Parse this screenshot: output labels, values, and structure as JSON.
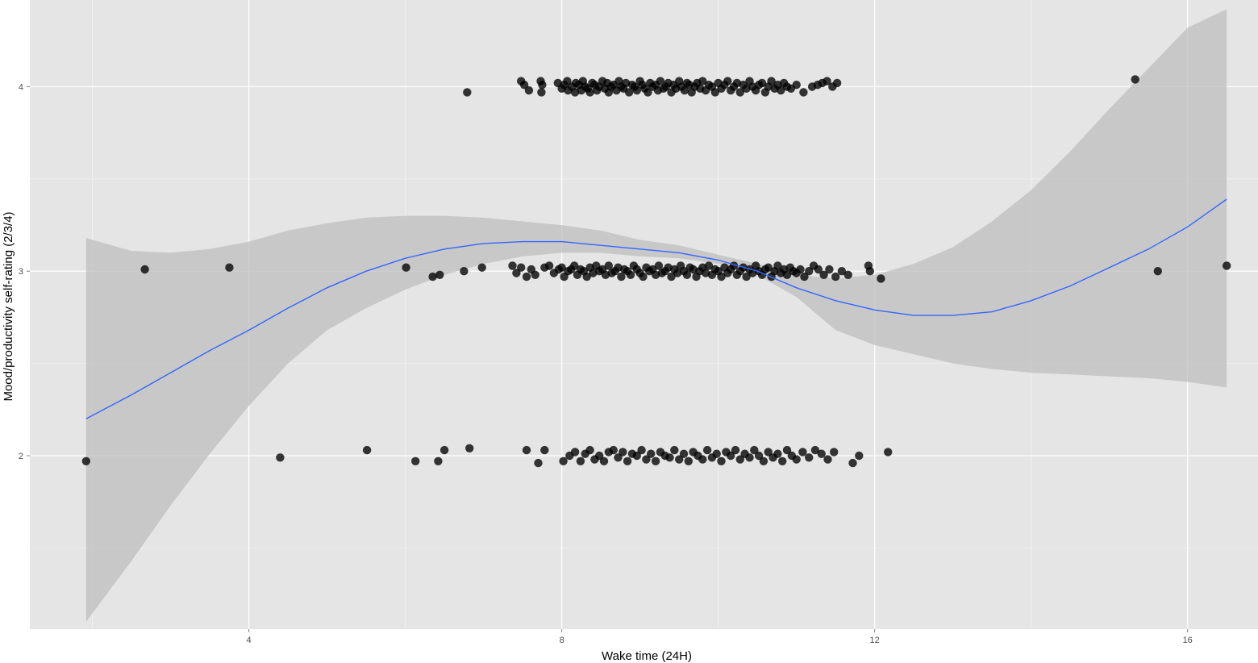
{
  "chart_data": {
    "type": "scatter",
    "title": "",
    "xlabel": "Wake time (24H)",
    "ylabel": "Mood/productivity self-rating (2/3/4)",
    "xlim": [
      1.2,
      16.9
    ],
    "ylim": [
      1.06,
      4.47
    ],
    "x_ticks": [
      4,
      8,
      12,
      16
    ],
    "x_tick_labels": [
      "4",
      "8",
      "12",
      "16"
    ],
    "y_ticks": [
      2,
      3,
      4
    ],
    "y_tick_labels": [
      "2",
      "3",
      "4"
    ],
    "grid": true,
    "legend": "none",
    "colors": {
      "panel_background": "#e5e5e5",
      "grid_major": "#ffffff",
      "grid_minor": "#f2f2f2",
      "points": "#000000",
      "smooth_line": "#3366ff",
      "confidence_band": "#bdbdbd"
    },
    "series": [
      {
        "kind": "points",
        "groups": [
          {
            "y": 4,
            "x": [
              6.79,
              7.48,
              7.52,
              7.58,
              7.73,
              7.74,
              7.75,
              7.95,
              8.0,
              8.03,
              8.07,
              8.08,
              8.13,
              8.17,
              8.18,
              8.22,
              8.25,
              8.27,
              8.3,
              8.33,
              8.36,
              8.39,
              8.42,
              8.45,
              8.48,
              8.52,
              8.55,
              8.58,
              8.6,
              8.63,
              8.66,
              8.7,
              8.73,
              8.76,
              8.79,
              8.82,
              8.86,
              8.9,
              8.93,
              8.96,
              9.0,
              9.03,
              9.06,
              9.1,
              9.13,
              9.16,
              9.2,
              9.23,
              9.26,
              9.3,
              9.33,
              9.36,
              9.4,
              9.43,
              9.46,
              9.5,
              9.53,
              9.57,
              9.6,
              9.63,
              9.66,
              9.7,
              9.73,
              9.77,
              9.8,
              9.84,
              9.88,
              9.92,
              9.96,
              10.0,
              10.04,
              10.08,
              10.12,
              10.16,
              10.2,
              10.24,
              10.28,
              10.32,
              10.36,
              10.4,
              10.44,
              10.48,
              10.52,
              10.56,
              10.6,
              10.64,
              10.68,
              10.72,
              10.76,
              10.8,
              10.84,
              10.88,
              10.93,
              11.0,
              11.09,
              11.2,
              11.27,
              11.33,
              11.39,
              11.46,
              11.52,
              15.33
            ],
            "y_jitter": [
              -0.03,
              0.03,
              0.01,
              -0.02,
              0.03,
              -0.03,
              0.01,
              0.02,
              -0.01,
              0.01,
              0.03,
              -0.02,
              0.0,
              -0.03,
              0.02,
              0.01,
              -0.02,
              0.03,
              0.0,
              -0.01,
              -0.03,
              0.02,
              0.01,
              -0.02,
              0.0,
              0.03,
              -0.01,
              0.02,
              -0.03,
              0.0,
              0.01,
              -0.02,
              0.03,
              0.0,
              -0.01,
              0.02,
              -0.03,
              0.01,
              0.0,
              -0.02,
              0.03,
              0.01,
              -0.01,
              -0.03,
              0.02,
              0.0,
              0.01,
              -0.02,
              0.03,
              -0.01,
              0.0,
              0.02,
              -0.03,
              0.01,
              -0.01,
              0.03,
              0.0,
              -0.02,
              0.02,
              0.01,
              -0.03,
              0.0,
              0.02,
              -0.01,
              0.03,
              -0.02,
              0.01,
              0.0,
              -0.03,
              0.02,
              -0.01,
              0.01,
              0.03,
              -0.02,
              0.0,
              0.02,
              -0.03,
              0.01,
              -0.01,
              0.03,
              0.0,
              -0.02,
              0.01,
              0.02,
              -0.03,
              0.0,
              0.03,
              -0.01,
              0.01,
              -0.02,
              0.02,
              0.0,
              -0.01,
              0.01,
              -0.03,
              0.0,
              0.01,
              0.02,
              0.03,
              0.0,
              0.02,
              0.04
            ]
          },
          {
            "y": 3,
            "x": [
              2.67,
              3.75,
              6.01,
              6.35,
              6.44,
              6.75,
              6.98,
              7.37,
              7.42,
              7.48,
              7.55,
              7.61,
              7.66,
              7.78,
              7.84,
              7.9,
              7.96,
              8.0,
              8.03,
              8.08,
              8.12,
              8.16,
              8.2,
              8.24,
              8.28,
              8.32,
              8.36,
              8.4,
              8.44,
              8.48,
              8.52,
              8.56,
              8.6,
              8.64,
              8.68,
              8.72,
              8.76,
              8.8,
              8.84,
              8.88,
              8.92,
              8.96,
              9.0,
              9.04,
              9.08,
              9.12,
              9.16,
              9.2,
              9.24,
              9.28,
              9.32,
              9.36,
              9.4,
              9.44,
              9.48,
              9.52,
              9.56,
              9.6,
              9.64,
              9.68,
              9.72,
              9.76,
              9.8,
              9.84,
              9.88,
              9.92,
              9.96,
              10.0,
              10.04,
              10.08,
              10.12,
              10.16,
              10.2,
              10.24,
              10.28,
              10.32,
              10.36,
              10.4,
              10.44,
              10.48,
              10.52,
              10.56,
              10.6,
              10.64,
              10.68,
              10.72,
              10.76,
              10.8,
              10.84,
              10.88,
              10.92,
              10.96,
              11.0,
              11.05,
              11.1,
              11.16,
              11.22,
              11.28,
              11.35,
              11.42,
              11.5,
              11.58,
              11.66,
              11.92,
              11.94,
              12.08,
              15.62,
              16.5
            ],
            "y_jitter": [
              0.01,
              0.02,
              0.02,
              -0.03,
              -0.02,
              0.0,
              0.02,
              0.03,
              -0.01,
              0.02,
              -0.03,
              0.01,
              -0.02,
              0.02,
              0.03,
              -0.01,
              0.01,
              0.02,
              -0.03,
              0.0,
              0.01,
              0.03,
              -0.02,
              0.01,
              0.0,
              -0.03,
              0.02,
              -0.01,
              0.03,
              0.0,
              0.01,
              -0.02,
              0.03,
              -0.01,
              0.0,
              0.02,
              -0.03,
              0.01,
              0.0,
              -0.02,
              0.03,
              0.01,
              -0.01,
              -0.03,
              0.02,
              0.0,
              0.01,
              -0.02,
              0.03,
              -0.01,
              0.0,
              0.02,
              -0.03,
              0.01,
              -0.01,
              0.03,
              0.0,
              -0.02,
              0.02,
              0.01,
              -0.03,
              0.0,
              0.02,
              -0.01,
              0.03,
              -0.02,
              0.01,
              0.0,
              -0.03,
              0.02,
              -0.01,
              0.01,
              0.03,
              -0.02,
              0.0,
              0.02,
              -0.03,
              0.01,
              -0.01,
              0.03,
              0.0,
              -0.02,
              0.01,
              0.02,
              -0.03,
              0.0,
              0.03,
              -0.01,
              0.01,
              -0.02,
              0.02,
              0.0,
              -0.01,
              0.01,
              -0.03,
              0.0,
              0.03,
              0.01,
              -0.02,
              0.01,
              -0.03,
              0.0,
              -0.02,
              0.03,
              0.0,
              -0.04,
              0.0,
              0.03
            ]
          },
          {
            "y": 2,
            "x": [
              1.92,
              4.4,
              5.51,
              6.13,
              6.42,
              6.5,
              6.82,
              7.55,
              7.7,
              7.78,
              8.02,
              8.1,
              8.17,
              8.24,
              8.3,
              8.36,
              8.42,
              8.48,
              8.54,
              8.6,
              8.66,
              8.72,
              8.78,
              8.84,
              8.9,
              8.96,
              9.02,
              9.08,
              9.14,
              9.2,
              9.26,
              9.32,
              9.38,
              9.44,
              9.5,
              9.56,
              9.62,
              9.68,
              9.74,
              9.8,
              9.86,
              9.92,
              9.98,
              10.04,
              10.1,
              10.16,
              10.22,
              10.28,
              10.34,
              10.4,
              10.46,
              10.52,
              10.58,
              10.64,
              10.7,
              10.76,
              10.82,
              10.88,
              10.94,
              11.0,
              11.08,
              11.16,
              11.24,
              11.32,
              11.4,
              11.48,
              11.72,
              11.8,
              12.17
            ],
            "y_jitter": [
              -0.03,
              -0.01,
              0.03,
              -0.03,
              -0.03,
              0.03,
              0.04,
              0.03,
              -0.04,
              0.03,
              -0.03,
              0.0,
              0.02,
              -0.03,
              0.01,
              0.03,
              -0.02,
              0.0,
              -0.03,
              0.02,
              0.03,
              -0.01,
              0.02,
              -0.03,
              0.01,
              0.0,
              0.03,
              -0.02,
              0.01,
              -0.03,
              0.02,
              0.0,
              -0.01,
              0.03,
              -0.02,
              0.01,
              -0.03,
              0.02,
              0.0,
              -0.02,
              0.03,
              -0.01,
              0.01,
              -0.03,
              0.02,
              0.0,
              0.03,
              -0.02,
              0.01,
              -0.01,
              0.03,
              0.0,
              -0.03,
              0.02,
              -0.01,
              0.01,
              -0.03,
              0.03,
              0.0,
              -0.02,
              0.02,
              -0.01,
              0.03,
              0.01,
              -0.02,
              0.02,
              -0.04,
              0.0,
              0.02
            ]
          }
        ]
      },
      {
        "kind": "smooth",
        "x": [
          1.92,
          2.5,
          3.0,
          3.5,
          4.0,
          4.5,
          5.0,
          5.5,
          6.0,
          6.5,
          7.0,
          7.5,
          8.0,
          8.5,
          9.0,
          9.5,
          10.0,
          10.5,
          11.0,
          11.5,
          12.0,
          12.5,
          13.0,
          13.5,
          14.0,
          14.5,
          15.0,
          15.5,
          16.0,
          16.5
        ],
        "y": [
          2.2,
          2.33,
          2.45,
          2.57,
          2.68,
          2.8,
          2.91,
          3.0,
          3.07,
          3.12,
          3.15,
          3.16,
          3.16,
          3.14,
          3.12,
          3.1,
          3.06,
          3.0,
          2.91,
          2.84,
          2.79,
          2.76,
          2.76,
          2.78,
          2.84,
          2.92,
          3.02,
          3.12,
          3.24,
          3.39
        ],
        "ci_lower": [
          1.1,
          1.43,
          1.73,
          2.01,
          2.27,
          2.5,
          2.68,
          2.8,
          2.9,
          2.98,
          3.04,
          3.08,
          3.1,
          3.1,
          3.08,
          3.07,
          3.04,
          2.98,
          2.86,
          2.68,
          2.6,
          2.55,
          2.5,
          2.47,
          2.45,
          2.44,
          2.43,
          2.42,
          2.4,
          2.37
        ],
        "ci_upper": [
          3.18,
          3.11,
          3.1,
          3.12,
          3.16,
          3.22,
          3.26,
          3.29,
          3.3,
          3.3,
          3.29,
          3.27,
          3.25,
          3.22,
          3.17,
          3.14,
          3.09,
          3.04,
          2.98,
          2.96,
          2.98,
          3.04,
          3.13,
          3.27,
          3.44,
          3.65,
          3.88,
          4.1,
          4.32,
          4.42
        ]
      }
    ]
  }
}
